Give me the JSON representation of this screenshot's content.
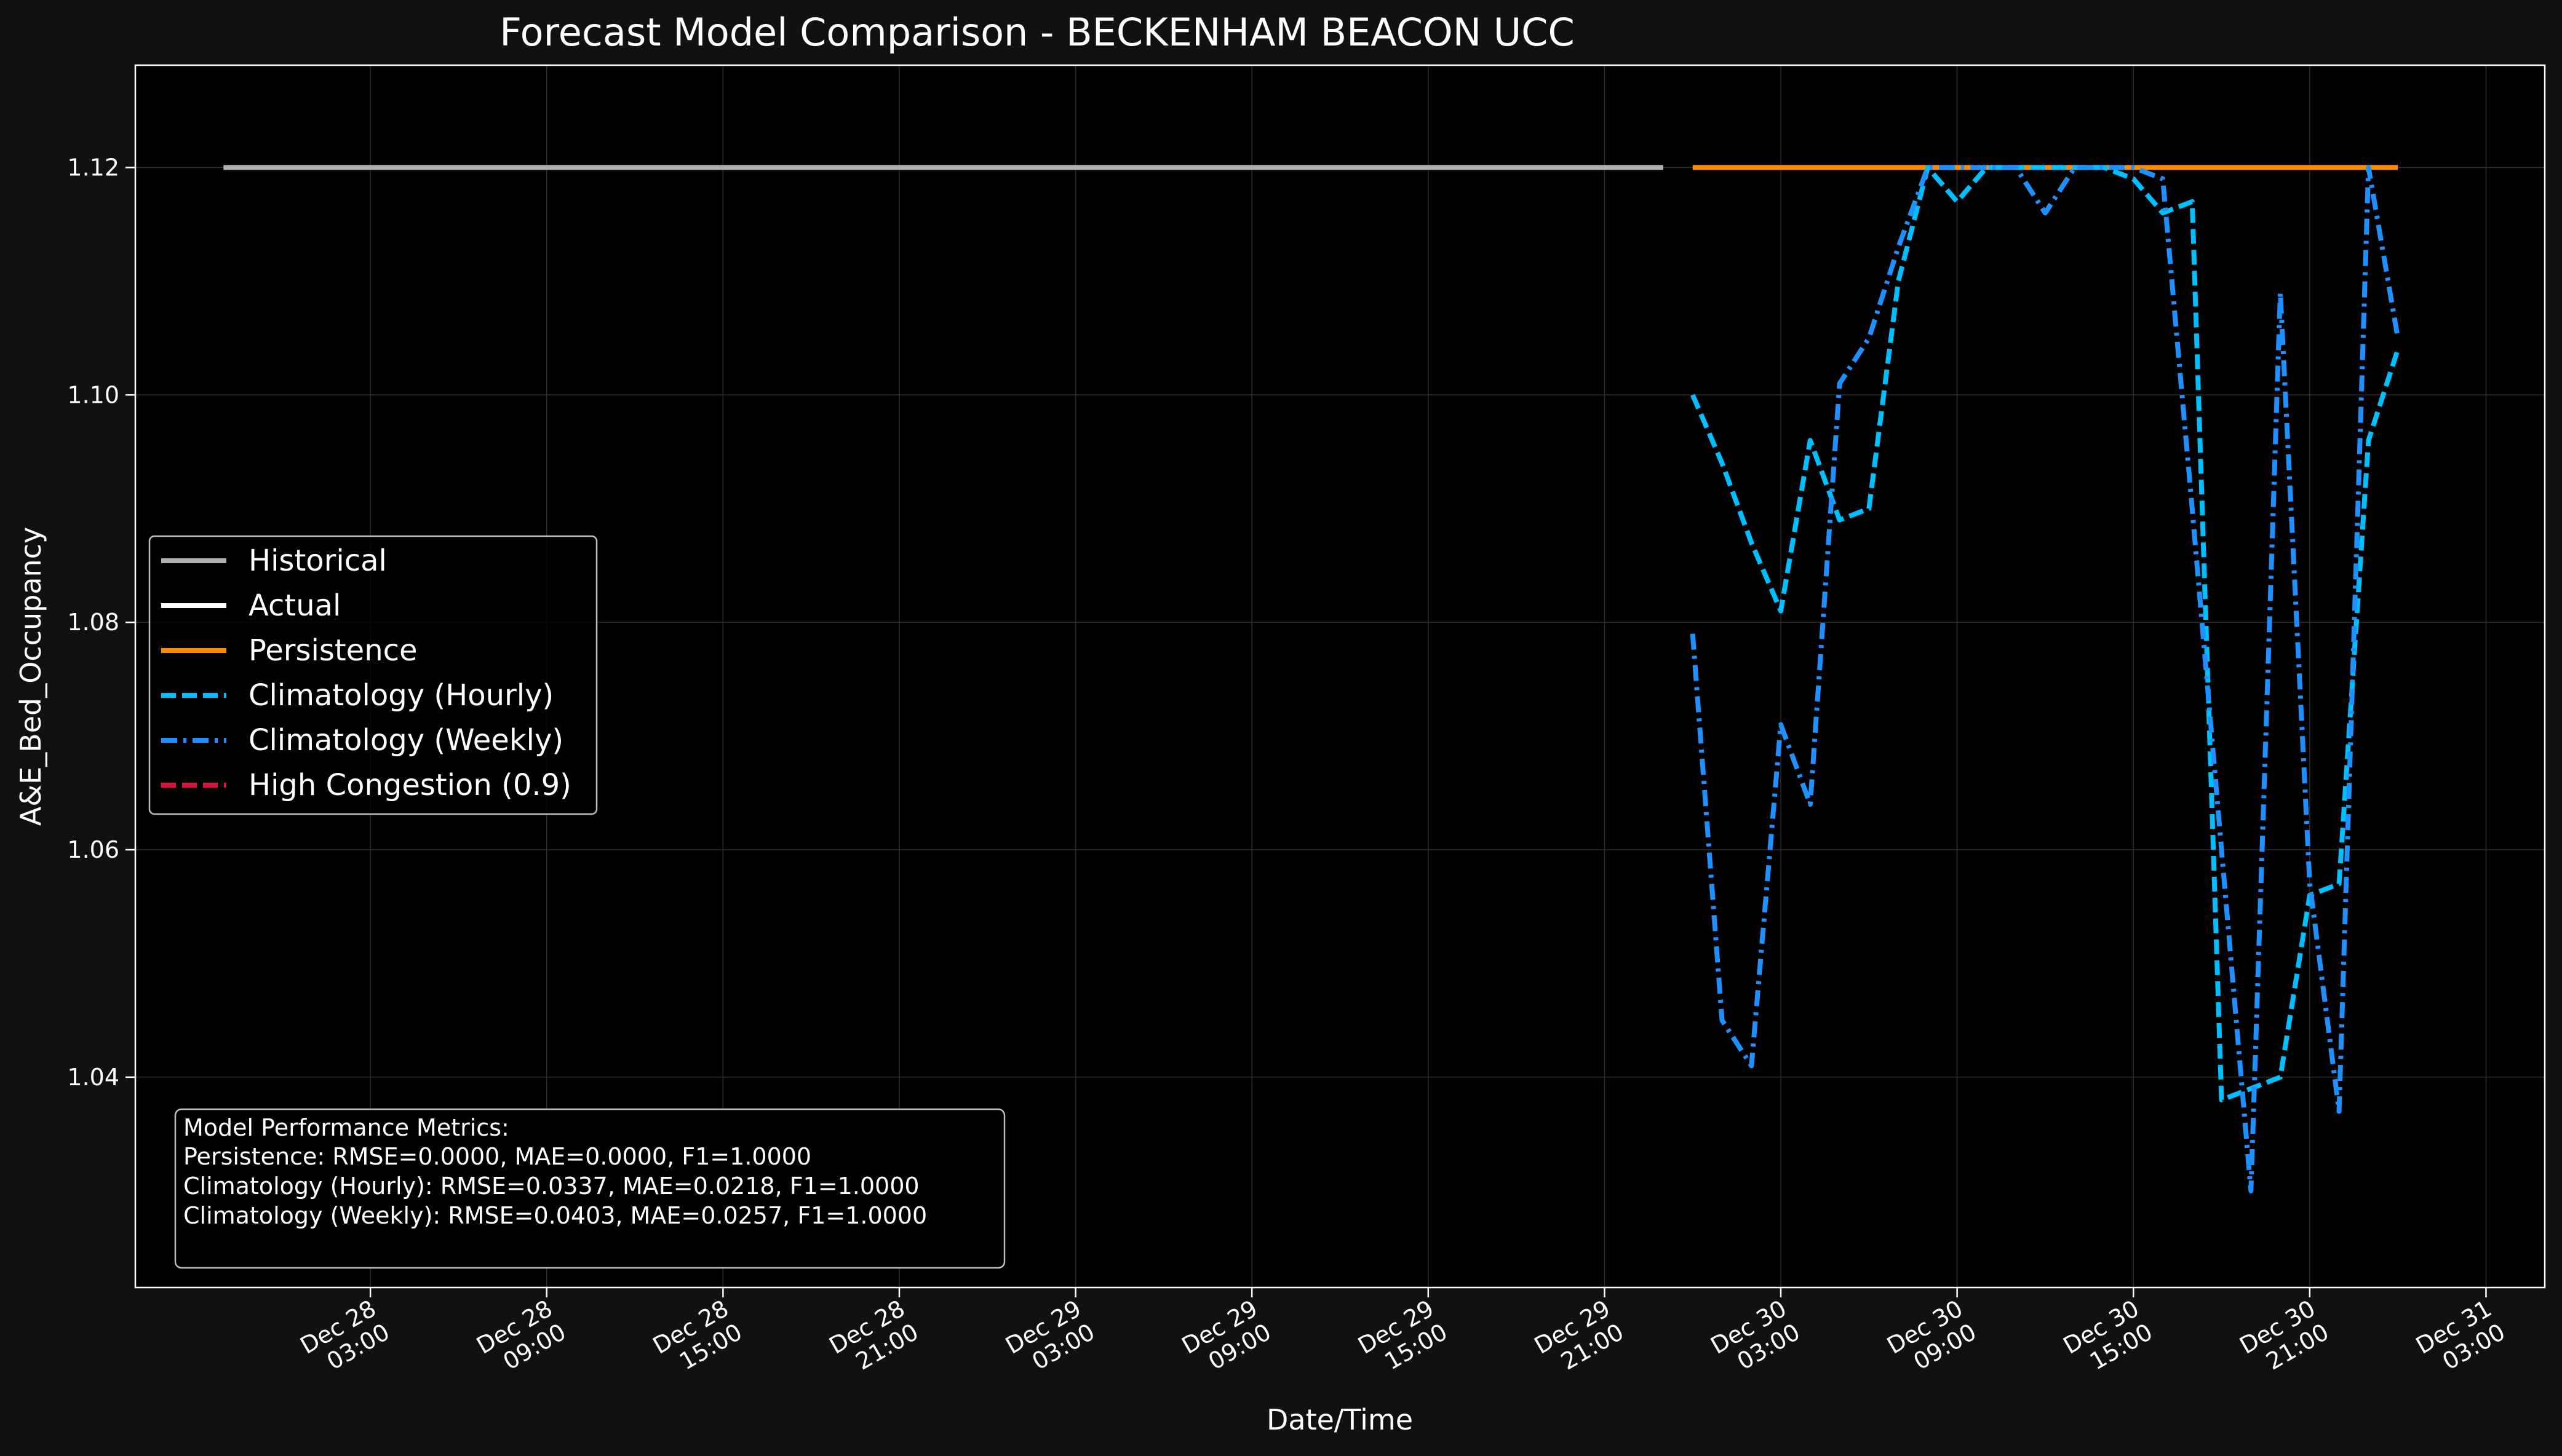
{
  "chart_data": {
    "type": "line",
    "title": "Forecast Model Comparison - BECKENHAM BEACON UCC",
    "xlabel": "Date/Time",
    "ylabel": "A&E_Bed_Occupancy",
    "xlim": [
      "2017-12-27 19:00",
      "2017-12-31 05:00"
    ],
    "ylim": [
      1.0215,
      1.129
    ],
    "grid": true,
    "legend_position": "center-left",
    "x_ticks": [
      {
        "t": "2017-12-28 03:00",
        "line1": "Dec 28",
        "line2": "03:00"
      },
      {
        "t": "2017-12-28 09:00",
        "line1": "Dec 28",
        "line2": "09:00"
      },
      {
        "t": "2017-12-28 15:00",
        "line1": "Dec 28",
        "line2": "15:00"
      },
      {
        "t": "2017-12-28 21:00",
        "line1": "Dec 28",
        "line2": "21:00"
      },
      {
        "t": "2017-12-29 03:00",
        "line1": "Dec 29",
        "line2": "03:00"
      },
      {
        "t": "2017-12-29 09:00",
        "line1": "Dec 29",
        "line2": "09:00"
      },
      {
        "t": "2017-12-29 15:00",
        "line1": "Dec 29",
        "line2": "15:00"
      },
      {
        "t": "2017-12-29 21:00",
        "line1": "Dec 29",
        "line2": "21:00"
      },
      {
        "t": "2017-12-30 03:00",
        "line1": "Dec 30",
        "line2": "03:00"
      },
      {
        "t": "2017-12-30 09:00",
        "line1": "Dec 30",
        "line2": "09:00"
      },
      {
        "t": "2017-12-30 15:00",
        "line1": "Dec 30",
        "line2": "15:00"
      },
      {
        "t": "2017-12-30 21:00",
        "line1": "Dec 30",
        "line2": "21:00"
      },
      {
        "t": "2017-12-31 03:00",
        "line1": "Dec 31",
        "line2": "03:00"
      }
    ],
    "y_ticks": [
      "1.04",
      "1.06",
      "1.08",
      "1.10",
      "1.12"
    ],
    "series": [
      {
        "name": "Historical",
        "color": "#b0b0b0",
        "style": "solid",
        "x": [
          "2017-12-27 22:00",
          "2017-12-29 23:00"
        ],
        "y": [
          1.12,
          1.12
        ]
      },
      {
        "name": "Actual",
        "color": "#ffffff",
        "style": "solid",
        "x": [],
        "y": []
      },
      {
        "name": "Persistence",
        "color": "#ff8c00",
        "style": "solid",
        "x": [
          "2017-12-30 00:00",
          "2017-12-31 00:00"
        ],
        "y": [
          1.12,
          1.12
        ]
      },
      {
        "name": "Climatology (Hourly)",
        "color": "#00bfff",
        "style": "dashed",
        "x": [
          "2017-12-30 00:00",
          "2017-12-30 01:00",
          "2017-12-30 02:00",
          "2017-12-30 03:00",
          "2017-12-30 04:00",
          "2017-12-30 05:00",
          "2017-12-30 06:00",
          "2017-12-30 07:00",
          "2017-12-30 08:00",
          "2017-12-30 09:00",
          "2017-12-30 10:00",
          "2017-12-30 11:00",
          "2017-12-30 12:00",
          "2017-12-30 13:00",
          "2017-12-30 14:00",
          "2017-12-30 15:00",
          "2017-12-30 16:00",
          "2017-12-30 17:00",
          "2017-12-30 18:00",
          "2017-12-30 19:00",
          "2017-12-30 20:00",
          "2017-12-30 21:00",
          "2017-12-30 22:00",
          "2017-12-30 23:00",
          "2017-12-31 00:00"
        ],
        "y": [
          1.1,
          1.094,
          1.087,
          1.081,
          1.096,
          1.089,
          1.09,
          1.11,
          1.12,
          1.117,
          1.12,
          1.12,
          1.12,
          1.12,
          1.12,
          1.119,
          1.116,
          1.117,
          1.038,
          1.039,
          1.04,
          1.056,
          1.057,
          1.096,
          1.104
        ]
      },
      {
        "name": "Climatology (Weekly)",
        "color": "#1e90ff",
        "style": "dashdot",
        "x": [
          "2017-12-30 00:00",
          "2017-12-30 01:00",
          "2017-12-30 02:00",
          "2017-12-30 03:00",
          "2017-12-30 04:00",
          "2017-12-30 05:00",
          "2017-12-30 06:00",
          "2017-12-30 07:00",
          "2017-12-30 08:00",
          "2017-12-30 09:00",
          "2017-12-30 10:00",
          "2017-12-30 11:00",
          "2017-12-30 12:00",
          "2017-12-30 13:00",
          "2017-12-30 14:00",
          "2017-12-30 15:00",
          "2017-12-30 16:00",
          "2017-12-30 17:00",
          "2017-12-30 18:00",
          "2017-12-30 19:00",
          "2017-12-30 20:00",
          "2017-12-30 21:00",
          "2017-12-30 22:00",
          "2017-12-30 23:00",
          "2017-12-31 00:00"
        ],
        "y": [
          1.079,
          1.045,
          1.041,
          1.071,
          1.064,
          1.101,
          1.105,
          1.113,
          1.12,
          1.12,
          1.12,
          1.12,
          1.116,
          1.12,
          1.12,
          1.12,
          1.119,
          1.09,
          1.06,
          1.03,
          1.109,
          1.057,
          1.037,
          1.12,
          1.105
        ]
      },
      {
        "name": "High Congestion (0.9)",
        "color": "#dc143c",
        "style": "dashed",
        "y_value": 0.9
      }
    ],
    "metrics_box": {
      "line1": "Model Performance Metrics:",
      "line2": "Persistence: RMSE=0.0000, MAE=0.0000, F1=1.0000",
      "line3": "Climatology (Hourly): RMSE=0.0337, MAE=0.0218, F1=1.0000",
      "line4": "Climatology (Weekly): RMSE=0.0403, MAE=0.0257, F1=1.0000"
    }
  }
}
